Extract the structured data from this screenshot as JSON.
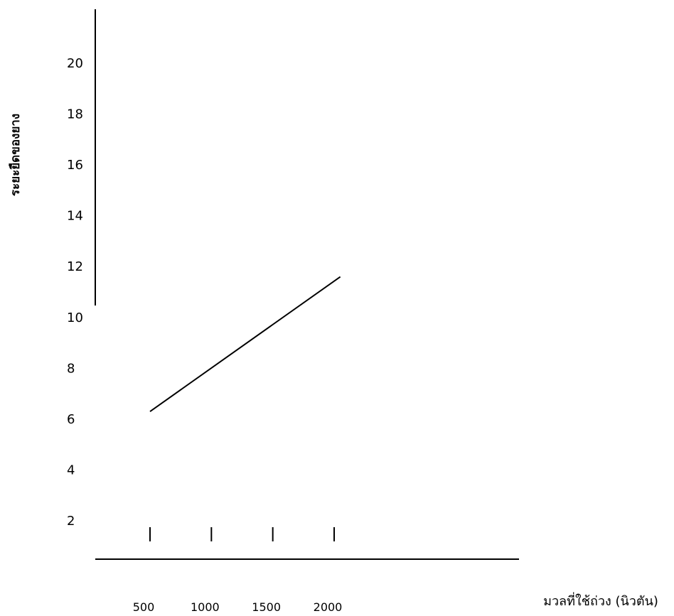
{
  "chart_data": {
    "type": "line",
    "title": "",
    "xlabel": "มวลที่ใช้ถ่วง (นิวตัน)",
    "ylabel": "ระยะยืดของยาง",
    "x_tick_labels": [
      "500",
      "1000",
      "1500",
      "2000"
    ],
    "y_tick_labels": [
      "2",
      "4",
      "6",
      "8",
      "10",
      "12",
      "14",
      "16",
      "18",
      "20"
    ],
    "xlim": [
      500,
      2000
    ],
    "ylim": [
      2,
      20
    ],
    "grid": false,
    "legend": "none",
    "series": [
      {
        "x": [
          500,
          2050
        ],
        "y": [
          6.3,
          11.6
        ]
      }
    ]
  },
  "colors": {
    "line": "#000000",
    "axis": "#000000",
    "background": "#ffffff"
  }
}
